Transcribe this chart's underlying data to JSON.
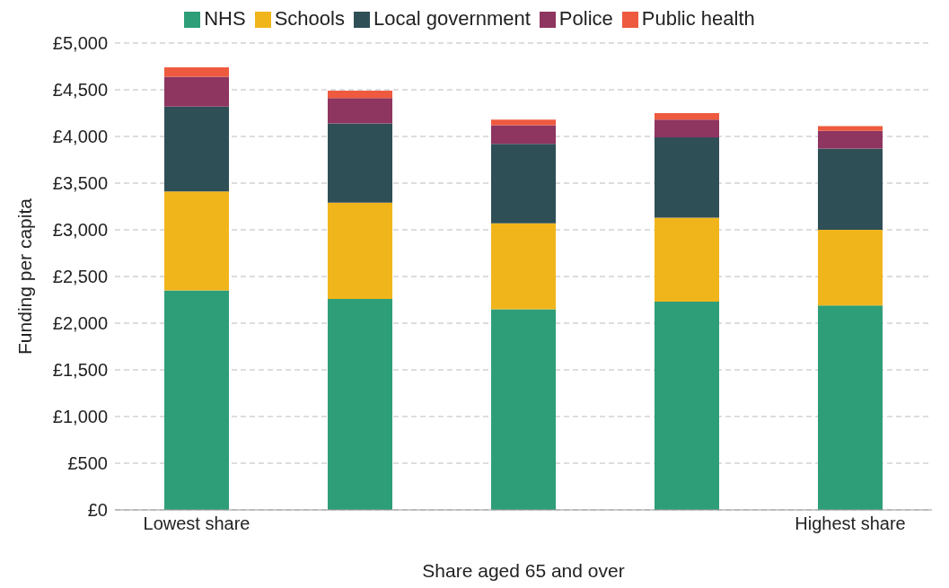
{
  "chart_data": {
    "type": "bar",
    "stacked": true,
    "xlabel": "Share aged 65 and over",
    "ylabel": "Funding per capita",
    "categories": [
      "Lowest share",
      null,
      null,
      null,
      "Highest share"
    ],
    "series": [
      {
        "name": "NHS",
        "color": "#2e9e78",
        "values": [
          2350,
          2260,
          2150,
          2230,
          2190
        ]
      },
      {
        "name": "Schools",
        "color": "#f1b51c",
        "values": [
          1060,
          1030,
          920,
          900,
          810
        ]
      },
      {
        "name": "Local government",
        "color": "#2f4f57",
        "values": [
          910,
          850,
          850,
          860,
          870
        ]
      },
      {
        "name": "Police",
        "color": "#8e3560",
        "values": [
          320,
          270,
          200,
          190,
          190
        ]
      },
      {
        "name": "Public health",
        "color": "#ee5a3f",
        "values": [
          100,
          80,
          60,
          70,
          50
        ]
      }
    ],
    "ylim": [
      0,
      5000
    ],
    "yticks": [
      {
        "value": 0,
        "label": "£0"
      },
      {
        "value": 500,
        "label": "£500"
      },
      {
        "value": 1000,
        "label": "£1,000"
      },
      {
        "value": 1500,
        "label": "£1,500"
      },
      {
        "value": 2000,
        "label": "£2,000"
      },
      {
        "value": 2500,
        "label": "£2,500"
      },
      {
        "value": 3000,
        "label": "£3,000"
      },
      {
        "value": 3500,
        "label": "£3,500"
      },
      {
        "value": 4000,
        "label": "£4,000"
      },
      {
        "value": 4500,
        "label": "£4,500"
      },
      {
        "value": 5000,
        "label": "£5,000"
      }
    ],
    "grid": "y",
    "legend": "top"
  }
}
